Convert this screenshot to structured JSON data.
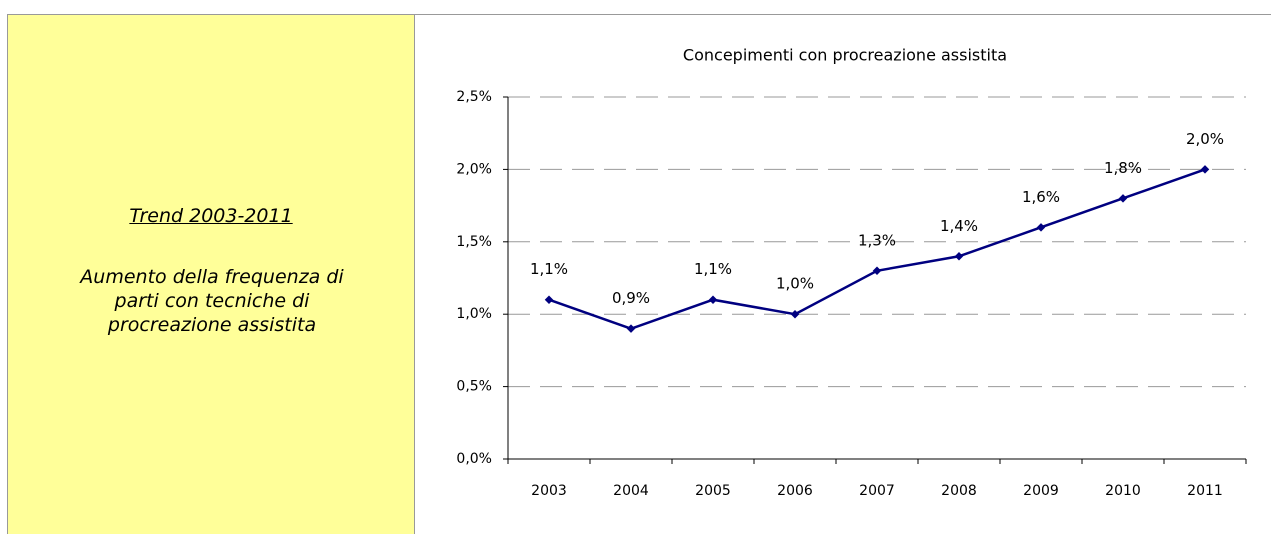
{
  "panel": {
    "heading": "Trend 2003-2011",
    "text": "Aumento della frequenza di parti con tecniche di procreazione assistita"
  },
  "chart_data": {
    "type": "line",
    "title": "Concepimenti con procreazione assistita",
    "categories": [
      "2003",
      "2004",
      "2005",
      "2006",
      "2007",
      "2008",
      "2009",
      "2010",
      "2011"
    ],
    "series": [
      {
        "name": "Concepimenti con procreazione assistita",
        "color": "#000080",
        "values": [
          1.1,
          0.9,
          1.1,
          1.0,
          1.3,
          1.4,
          1.6,
          1.8,
          2.0
        ],
        "value_labels": [
          "1,1%",
          "0,9%",
          "1,1%",
          "1,0%",
          "1,3%",
          "1,4%",
          "1,6%",
          "1,8%",
          "2,0%"
        ]
      }
    ],
    "ylim": [
      0,
      2.5
    ],
    "yticks": [
      {
        "value": 0,
        "label": "0,0%"
      },
      {
        "value": 0.5,
        "label": "0,5%"
      },
      {
        "value": 1.0,
        "label": "1,0%"
      },
      {
        "value": 1.5,
        "label": "1,5%"
      },
      {
        "value": 2.0,
        "label": "2,0%"
      },
      {
        "value": 2.5,
        "label": "2,5%"
      }
    ],
    "grid": true
  }
}
